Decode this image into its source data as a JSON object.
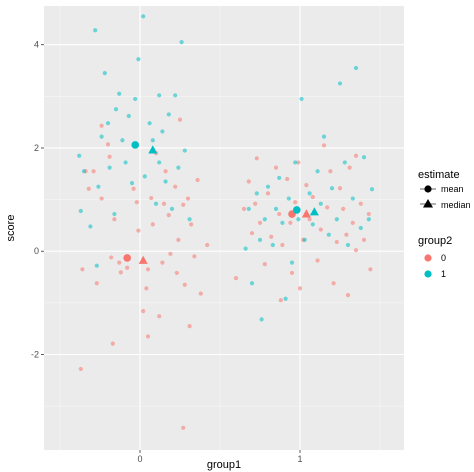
{
  "chart_data": {
    "type": "scatter",
    "xlabel": "group1",
    "ylabel": "score",
    "x_ticks": [
      0,
      1
    ],
    "y_ticks": [
      -2,
      0,
      2,
      4
    ],
    "xlim": [
      -0.6,
      1.65
    ],
    "ylim": [
      -3.85,
      4.75
    ],
    "grid": true,
    "legend_position": "right",
    "legends": [
      {
        "title": "estimate",
        "entries": [
          {
            "label": "mean",
            "shape": "circle"
          },
          {
            "label": "median",
            "shape": "triangle"
          }
        ]
      },
      {
        "title": "group2",
        "entries": [
          {
            "label": "0",
            "color": "#F8766D"
          },
          {
            "label": "1",
            "color": "#00BFC4"
          }
        ]
      }
    ],
    "series": [
      {
        "name": "0",
        "color": "#F8766D",
        "points": [
          [
            -0.37,
            -2.28
          ],
          [
            -0.32,
            1.21
          ],
          [
            -0.34,
            1.55
          ],
          [
            -0.36,
            -0.35
          ],
          [
            -0.29,
            1.55
          ],
          [
            -0.27,
            -0.62
          ],
          [
            -0.24,
            1.02
          ],
          [
            -0.2,
            2.07
          ],
          [
            -0.24,
            2.43
          ],
          [
            -0.19,
            1.83
          ],
          [
            -0.17,
            -1.79
          ],
          [
            -0.18,
            -0.12
          ],
          [
            -0.16,
            0.62
          ],
          [
            -0.13,
            -0.22
          ],
          [
            -0.12,
            -0.41
          ],
          [
            -0.08,
            -0.32
          ],
          [
            -0.04,
            1.21
          ],
          [
            -0.02,
            0.95
          ],
          [
            -0.01,
            0.4
          ],
          [
            0.02,
            -1.16
          ],
          [
            0.04,
            -0.72
          ],
          [
            0.05,
            -1.65
          ],
          [
            0.05,
            -0.35
          ],
          [
            0.07,
            1.03
          ],
          [
            0.08,
            0.52
          ],
          [
            0.1,
            1.9
          ],
          [
            0.12,
            -1.26
          ],
          [
            0.14,
            -0.22
          ],
          [
            0.15,
            0.92
          ],
          [
            0.16,
            1.55
          ],
          [
            0.18,
            0.7
          ],
          [
            0.19,
            -0.05
          ],
          [
            0.22,
            1.25
          ],
          [
            0.23,
            -0.42
          ],
          [
            0.24,
            0.22
          ],
          [
            0.25,
            2.55
          ],
          [
            0.27,
            0.9
          ],
          [
            0.28,
            -0.65
          ],
          [
            0.3,
            1.02
          ],
          [
            0.31,
            -1.45
          ],
          [
            0.32,
            0.52
          ],
          [
            0.34,
            -0.1
          ],
          [
            0.36,
            1.38
          ],
          [
            0.38,
            -0.82
          ],
          [
            0.27,
            -3.42
          ],
          [
            0.42,
            0.12
          ],
          [
            0.6,
            -0.52
          ],
          [
            0.65,
            0.82
          ],
          [
            0.68,
            1.35
          ],
          [
            0.7,
            0.35
          ],
          [
            0.73,
            1.8
          ],
          [
            0.75,
            0.55
          ],
          [
            0.78,
            -0.25
          ],
          [
            0.8,
            1.12
          ],
          [
            0.82,
            0.28
          ],
          [
            0.85,
            1.62
          ],
          [
            0.87,
            0.72
          ],
          [
            0.89,
            0.12
          ],
          [
            0.92,
            1.4
          ],
          [
            0.94,
            0.55
          ],
          [
            0.95,
            -0.42
          ],
          [
            0.97,
            0.95
          ],
          [
            0.99,
            1.72
          ],
          [
            1.02,
            0.22
          ],
          [
            1.04,
            1.28
          ],
          [
            1.06,
            0.62
          ],
          [
            1.08,
            1.05
          ],
          [
            1.11,
            -0.18
          ],
          [
            1.13,
            0.42
          ],
          [
            1.15,
            2.05
          ],
          [
            1.17,
            0.85
          ],
          [
            1.19,
            1.55
          ],
          [
            1.21,
            -0.62
          ],
          [
            1.23,
            0.18
          ],
          [
            1.25,
            1.22
          ],
          [
            1.27,
            0.82
          ],
          [
            1.29,
            0.32
          ],
          [
            1.31,
            1.62
          ],
          [
            1.33,
            0.55
          ],
          [
            1.35,
            0.02
          ],
          [
            1.38,
            0.92
          ],
          [
            1.4,
            0.22
          ],
          [
            1.43,
            0.72
          ],
          [
            1.44,
            -0.35
          ],
          [
            1.3,
            -0.85
          ],
          [
            1.35,
            1.85
          ],
          [
            0.72,
            0.92
          ],
          [
            1.0,
            -0.72
          ],
          [
            0.88,
            -0.95
          ]
        ],
        "mean": [
          -0.08,
          -0.13
        ],
        "median": [
          0.02,
          -0.18
        ]
      },
      {
        "name": "1",
        "color": "#00BFC4",
        "points": [
          [
            -0.37,
            0.78
          ],
          [
            -0.38,
            1.85
          ],
          [
            -0.35,
            1.55
          ],
          [
            -0.31,
            0.48
          ],
          [
            -0.28,
            4.28
          ],
          [
            -0.27,
            -0.28
          ],
          [
            -0.26,
            1.25
          ],
          [
            -0.24,
            2.22
          ],
          [
            -0.22,
            3.45
          ],
          [
            -0.2,
            2.48
          ],
          [
            -0.19,
            1.62
          ],
          [
            -0.16,
            0.72
          ],
          [
            -0.15,
            2.75
          ],
          [
            -0.13,
            3.05
          ],
          [
            -0.11,
            2.15
          ],
          [
            -0.09,
            1.72
          ],
          [
            -0.07,
            2.62
          ],
          [
            -0.05,
            1.32
          ],
          [
            -0.03,
            2.95
          ],
          [
            -0.01,
            3.72
          ],
          [
            0.02,
            4.55
          ],
          [
            0.03,
            1.45
          ],
          [
            0.06,
            2.48
          ],
          [
            0.08,
            2.15
          ],
          [
            0.1,
            0.92
          ],
          [
            0.12,
            1.72
          ],
          [
            0.14,
            2.32
          ],
          [
            0.16,
            1.35
          ],
          [
            0.18,
            2.65
          ],
          [
            0.2,
            0.82
          ],
          [
            0.22,
            3.02
          ],
          [
            0.24,
            1.62
          ],
          [
            0.26,
            4.05
          ],
          [
            0.28,
            1.95
          ],
          [
            0.31,
            0.62
          ],
          [
            0.12,
            3.02
          ],
          [
            0.66,
            0.05
          ],
          [
            0.68,
            0.82
          ],
          [
            0.7,
            -0.62
          ],
          [
            0.73,
            1.12
          ],
          [
            0.75,
            0.22
          ],
          [
            0.78,
            0.62
          ],
          [
            0.8,
            1.25
          ],
          [
            0.83,
            0.12
          ],
          [
            0.85,
            0.82
          ],
          [
            0.87,
            1.42
          ],
          [
            0.89,
            0.55
          ],
          [
            0.91,
            -0.92
          ],
          [
            0.93,
            1.02
          ],
          [
            0.95,
            -0.22
          ],
          [
            0.97,
            1.72
          ],
          [
            0.99,
            0.62
          ],
          [
            1.01,
            2.95
          ],
          [
            1.03,
            0.22
          ],
          [
            1.06,
            1.12
          ],
          [
            1.08,
            0.52
          ],
          [
            1.11,
            1.55
          ],
          [
            1.13,
            0.92
          ],
          [
            1.15,
            2.22
          ],
          [
            1.18,
            0.32
          ],
          [
            1.2,
            1.22
          ],
          [
            1.23,
            0.62
          ],
          [
            1.25,
            3.25
          ],
          [
            1.28,
            1.72
          ],
          [
            1.3,
            0.12
          ],
          [
            1.33,
            1.02
          ],
          [
            1.35,
            3.55
          ],
          [
            1.38,
            0.45
          ],
          [
            1.4,
            1.82
          ],
          [
            1.43,
            0.62
          ],
          [
            1.45,
            1.2
          ],
          [
            0.76,
            -1.32
          ]
        ],
        "mean": [
          -0.03,
          2.06
        ],
        "median": [
          0.08,
          1.96
        ]
      }
    ],
    "summary_points": [
      {
        "group2": "0",
        "estimate": "mean",
        "x": 0.95,
        "y": 0.72
      },
      {
        "group2": "0",
        "estimate": "median",
        "x": 1.04,
        "y": 0.72
      },
      {
        "group2": "1",
        "estimate": "mean",
        "x": 0.98,
        "y": 0.8
      },
      {
        "group2": "1",
        "estimate": "median",
        "x": 1.09,
        "y": 0.76
      }
    ]
  }
}
